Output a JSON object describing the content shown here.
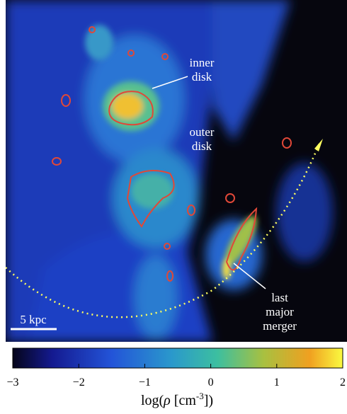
{
  "image": {
    "annotations": [
      {
        "lines": [
          "inner",
          "disk"
        ]
      },
      {
        "lines": [
          "outer",
          "disk"
        ]
      },
      {
        "lines": [
          "last",
          "major",
          "merger"
        ]
      }
    ],
    "scale_bar": "5 kpc"
  },
  "colorbar": {
    "lim": [
      -3,
      2
    ],
    "ticks": [
      {
        "value": -3,
        "label": "−3"
      },
      {
        "value": -2,
        "label": "−2"
      },
      {
        "value": -1,
        "label": "−1"
      },
      0,
      1,
      2
    ],
    "label": [
      "log(",
      "ρ",
      " [cm",
      "-3",
      "])"
    ]
  }
}
